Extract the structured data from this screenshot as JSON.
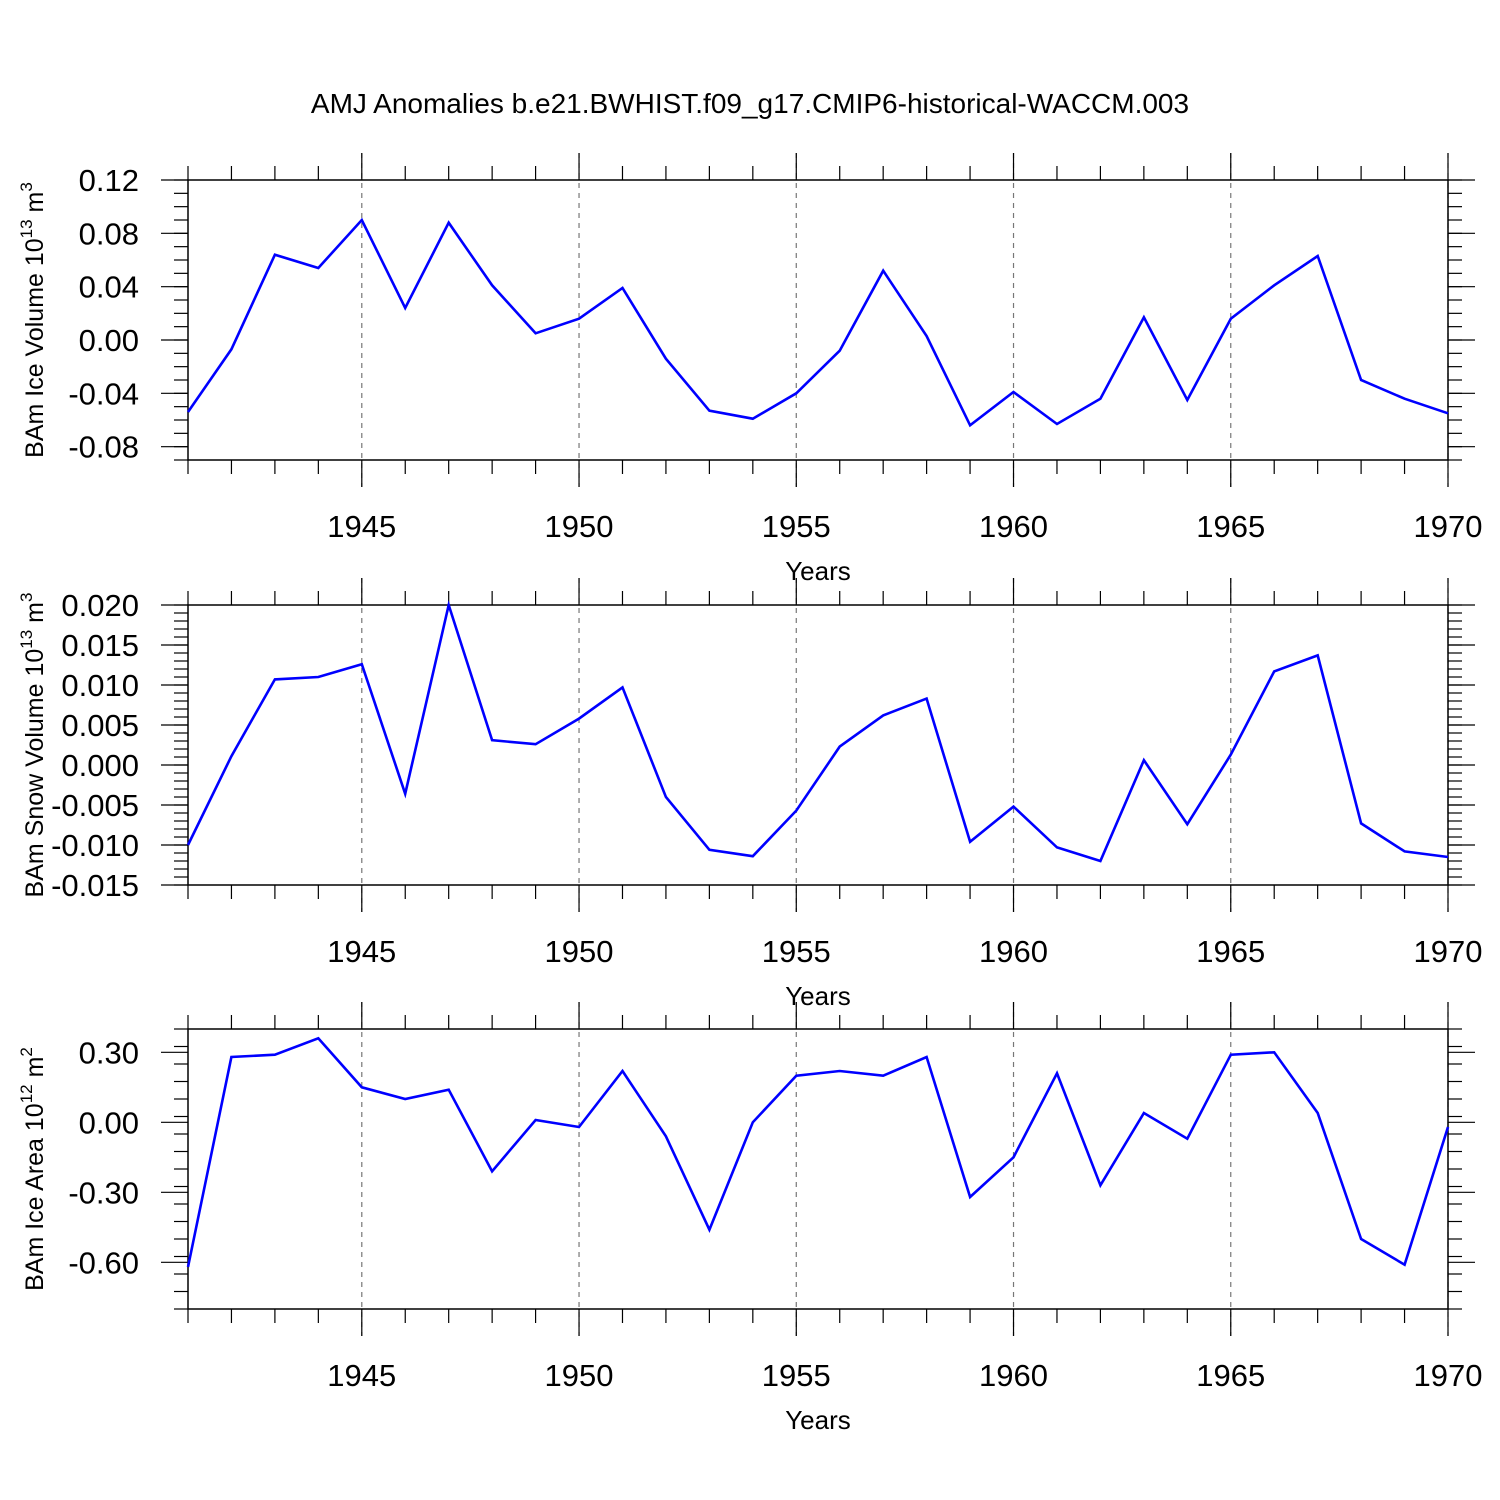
{
  "title": "AMJ Anomalies b.e21.BWHIST.f09_g17.CMIP6-historical-WACCM.003",
  "series_color": "#0000ff",
  "chart_data": [
    {
      "type": "line",
      "ylabel_main": "BAm Ice Volume 10",
      "ylabel_exp": "13",
      "ylabel_unit": " m",
      "ylabel_unit_exp": "3",
      "xlabel": "Years",
      "xlim": [
        1941,
        1970
      ],
      "ylim": [
        -0.09,
        0.12
      ],
      "yticks": [
        -0.08,
        -0.04,
        0.0,
        0.04,
        0.08,
        0.12
      ],
      "ytick_labels": [
        "-0.08",
        "-0.04",
        "0.00",
        "0.04",
        "0.08",
        "0.12"
      ],
      "yminor_step": 0.01,
      "xticks": [
        1945,
        1950,
        1955,
        1960,
        1965,
        1970
      ],
      "xtick_labels": [
        "1945",
        "1950",
        "1955",
        "1960",
        "1965",
        "1970"
      ],
      "x": [
        1941,
        1942,
        1943,
        1944,
        1945,
        1946,
        1947,
        1948,
        1949,
        1950,
        1951,
        1952,
        1953,
        1954,
        1955,
        1956,
        1957,
        1958,
        1959,
        1960,
        1961,
        1962,
        1963,
        1964,
        1965,
        1966,
        1967,
        1968,
        1969,
        1970
      ],
      "y": [
        -0.054,
        -0.007,
        0.064,
        0.054,
        0.09,
        0.024,
        0.088,
        0.041,
        0.005,
        0.016,
        0.039,
        -0.014,
        -0.053,
        -0.059,
        -0.04,
        -0.008,
        0.052,
        0.003,
        -0.064,
        -0.039,
        -0.063,
        -0.044,
        0.017,
        -0.045,
        0.016,
        0.041,
        0.063,
        -0.03,
        -0.044,
        -0.055
      ]
    },
    {
      "type": "line",
      "ylabel_main": "BAm Snow Volume 10",
      "ylabel_exp": "13",
      "ylabel_unit": " m",
      "ylabel_unit_exp": "3",
      "xlabel": "Years",
      "xlim": [
        1941,
        1970
      ],
      "ylim": [
        -0.015,
        0.02
      ],
      "yticks": [
        -0.015,
        -0.01,
        -0.005,
        0.0,
        0.005,
        0.01,
        0.015,
        0.02
      ],
      "ytick_labels": [
        "-0.015",
        "-0.010",
        "-0.005",
        "0.000",
        "0.005",
        "0.010",
        "0.015",
        "0.020"
      ],
      "yminor_step": 0.001,
      "xticks": [
        1945,
        1950,
        1955,
        1960,
        1965,
        1970
      ],
      "xtick_labels": [
        "1945",
        "1950",
        "1955",
        "1960",
        "1965",
        "1970"
      ],
      "x": [
        1941,
        1942,
        1943,
        1944,
        1945,
        1946,
        1947,
        1948,
        1949,
        1950,
        1951,
        1952,
        1953,
        1954,
        1955,
        1956,
        1957,
        1958,
        1959,
        1960,
        1961,
        1962,
        1963,
        1964,
        1965,
        1966,
        1967,
        1968,
        1969,
        1970
      ],
      "y": [
        -0.01,
        0.0011,
        0.0107,
        0.011,
        0.0126,
        -0.0036,
        0.02,
        0.0031,
        0.0026,
        0.0058,
        0.0097,
        -0.004,
        -0.0106,
        -0.0114,
        -0.0057,
        0.0023,
        0.0062,
        0.0083,
        -0.0096,
        -0.0052,
        -0.0103,
        -0.012,
        0.0006,
        -0.0074,
        0.0013,
        0.0117,
        0.0137,
        -0.0073,
        -0.0108,
        -0.0115
      ]
    },
    {
      "type": "line",
      "ylabel_main": "BAm Ice Area 10",
      "ylabel_exp": "12",
      "ylabel_unit": " m",
      "ylabel_unit_exp": "2",
      "xlabel": "Years",
      "xlim": [
        1941,
        1970
      ],
      "ylim": [
        -0.8,
        0.4
      ],
      "yticks": [
        -0.6,
        -0.3,
        0.0,
        0.3
      ],
      "ytick_labels": [
        "-0.60",
        "-0.30",
        "0.00",
        "0.30"
      ],
      "yminor_step": 0.075,
      "xticks": [
        1945,
        1950,
        1955,
        1960,
        1965,
        1970
      ],
      "xtick_labels": [
        "1945",
        "1950",
        "1955",
        "1960",
        "1965",
        "1970"
      ],
      "x": [
        1941,
        1942,
        1943,
        1944,
        1945,
        1946,
        1947,
        1948,
        1949,
        1950,
        1951,
        1952,
        1953,
        1954,
        1955,
        1956,
        1957,
        1958,
        1959,
        1960,
        1961,
        1962,
        1963,
        1964,
        1965,
        1966,
        1967,
        1968,
        1969,
        1970
      ],
      "y": [
        -0.62,
        0.28,
        0.29,
        0.36,
        0.15,
        0.1,
        0.14,
        -0.21,
        0.01,
        -0.02,
        0.22,
        -0.06,
        -0.46,
        0.0,
        0.2,
        0.22,
        0.2,
        0.28,
        -0.32,
        -0.15,
        0.21,
        -0.27,
        0.04,
        -0.07,
        0.29,
        0.3,
        0.04,
        -0.5,
        -0.61,
        -0.02
      ]
    }
  ]
}
